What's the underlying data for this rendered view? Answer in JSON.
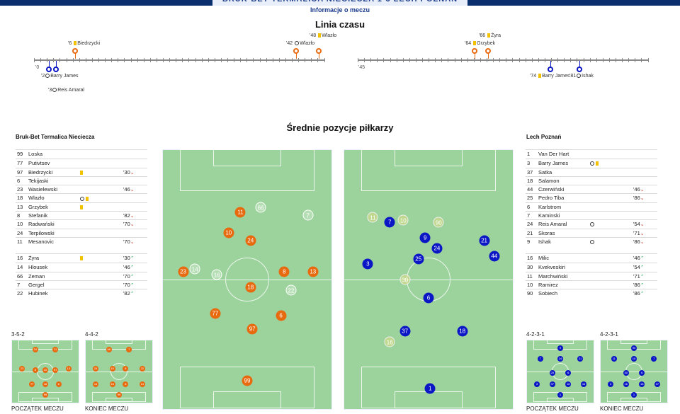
{
  "header": {
    "title": "BRUK-BET TERMALICA NIECIECZA 1-3 LECH POZNAŃ",
    "tab": "Informacje o meczu"
  },
  "timeline": {
    "title": "Linia czasu",
    "first_half_start": "'0",
    "second_half_start": "'45",
    "events": [
      {
        "minute": "'6",
        "player": "Biedrzycki",
        "type": "yellow"
      },
      {
        "minute": "'48",
        "player": "Wlazło",
        "type": "yellow"
      },
      {
        "minute": "'42",
        "player": "Wlazło",
        "type": "goal"
      },
      {
        "minute": "'2",
        "player": "Barry James",
        "type": "goal"
      },
      {
        "minute": "'3",
        "player": "Reis Amaral",
        "type": "goal"
      },
      {
        "minute": "'66",
        "player": "Żyra",
        "type": "yellow"
      },
      {
        "minute": "'64",
        "player": "Grzybek",
        "type": "yellow"
      },
      {
        "minute": "'74",
        "player": "Barry James",
        "type": "yellow"
      },
      {
        "minute": "'81",
        "player": "Ishak",
        "type": "goal"
      }
    ]
  },
  "positions_title": "Średnie pozycje piłkarzy",
  "home": {
    "name": "Bruk-Bet Termalica Nieciecza",
    "starters": [
      {
        "num": "99",
        "name": "Loska",
        "ev": "",
        "min": "",
        "dir": ""
      },
      {
        "num": "77",
        "name": "Putivtsev",
        "ev": "",
        "min": "",
        "dir": ""
      },
      {
        "num": "97",
        "name": "Biedrzycki",
        "ev": "y",
        "min": "'30",
        "dir": "down"
      },
      {
        "num": "6",
        "name": "Tekijaski",
        "ev": "",
        "min": "",
        "dir": ""
      },
      {
        "num": "23",
        "name": "Wasielewski",
        "ev": "",
        "min": "'46",
        "dir": "down"
      },
      {
        "num": "18",
        "name": "Wlazło",
        "ev": "gy",
        "min": "",
        "dir": ""
      },
      {
        "num": "13",
        "name": "Grzybek",
        "ev": "y",
        "min": "",
        "dir": ""
      },
      {
        "num": "8",
        "name": "Stefanik",
        "ev": "",
        "min": "'82",
        "dir": "down"
      },
      {
        "num": "10",
        "name": "Radwański",
        "ev": "",
        "min": "'70",
        "dir": "down"
      },
      {
        "num": "24",
        "name": "Terpilowski",
        "ev": "",
        "min": "",
        "dir": ""
      },
      {
        "num": "11",
        "name": "Mesanovic",
        "ev": "",
        "min": "'70",
        "dir": "down"
      }
    ],
    "subs": [
      {
        "num": "16",
        "name": "Żyra",
        "ev": "y",
        "min": "'30",
        "dir": "up"
      },
      {
        "num": "14",
        "name": "Hlousek",
        "ev": "",
        "min": "'46",
        "dir": "up"
      },
      {
        "num": "66",
        "name": "Zeman",
        "ev": "",
        "min": "'70",
        "dir": "up"
      },
      {
        "num": "7",
        "name": "Gergel",
        "ev": "",
        "min": "'70",
        "dir": "up"
      },
      {
        "num": "22",
        "name": "Hubinek",
        "ev": "",
        "min": "'82",
        "dir": "up"
      }
    ],
    "formation_start": "3-5-2",
    "formation_end": "4-4-2",
    "label_start": "POCZĄTEK MECZU",
    "label_end": "KONIEC MECZU"
  },
  "away": {
    "name": "Lech Poznań",
    "starters": [
      {
        "num": "1",
        "name": "Van Der Hart",
        "ev": "",
        "min": "",
        "dir": ""
      },
      {
        "num": "3",
        "name": "Barry James",
        "ev": "gy",
        "min": "",
        "dir": ""
      },
      {
        "num": "37",
        "name": "Satka",
        "ev": "",
        "min": "",
        "dir": ""
      },
      {
        "num": "18",
        "name": "Salamon",
        "ev": "",
        "min": "",
        "dir": ""
      },
      {
        "num": "44",
        "name": "Czerwiński",
        "ev": "",
        "min": "'46",
        "dir": "down"
      },
      {
        "num": "25",
        "name": "Pedro Tiba",
        "ev": "",
        "min": "'86",
        "dir": "down"
      },
      {
        "num": "6",
        "name": "Karlstrom",
        "ev": "",
        "min": "",
        "dir": ""
      },
      {
        "num": "7",
        "name": "Kaminski",
        "ev": "",
        "min": "",
        "dir": ""
      },
      {
        "num": "24",
        "name": "Reis Amaral",
        "ev": "g",
        "min": "'54",
        "dir": "down"
      },
      {
        "num": "21",
        "name": "Skoras",
        "ev": "",
        "min": "'71",
        "dir": "down"
      },
      {
        "num": "9",
        "name": "Ishak",
        "ev": "g",
        "min": "'86",
        "dir": "down"
      }
    ],
    "subs": [
      {
        "num": "16",
        "name": "Milic",
        "ev": "",
        "min": "'46",
        "dir": "up"
      },
      {
        "num": "30",
        "name": "Kvekveskiri",
        "ev": "",
        "min": "'54",
        "dir": "up"
      },
      {
        "num": "11",
        "name": "Marchwiński",
        "ev": "",
        "min": "'71",
        "dir": "up"
      },
      {
        "num": "10",
        "name": "Ramirez",
        "ev": "",
        "min": "'86",
        "dir": "up"
      },
      {
        "num": "90",
        "name": "Sobiech",
        "ev": "",
        "min": "'86",
        "dir": "up"
      }
    ],
    "formation_start": "4-2-3-1",
    "formation_end": "4-2-3-1",
    "label_start": "POCZĄTEK MECZU",
    "label_end": "KONIEC MECZU"
  },
  "colors": {
    "home": "#e76a0f",
    "away": "#0b16c4",
    "pitch": "#9cd39d",
    "yellow": "#f2c200"
  }
}
